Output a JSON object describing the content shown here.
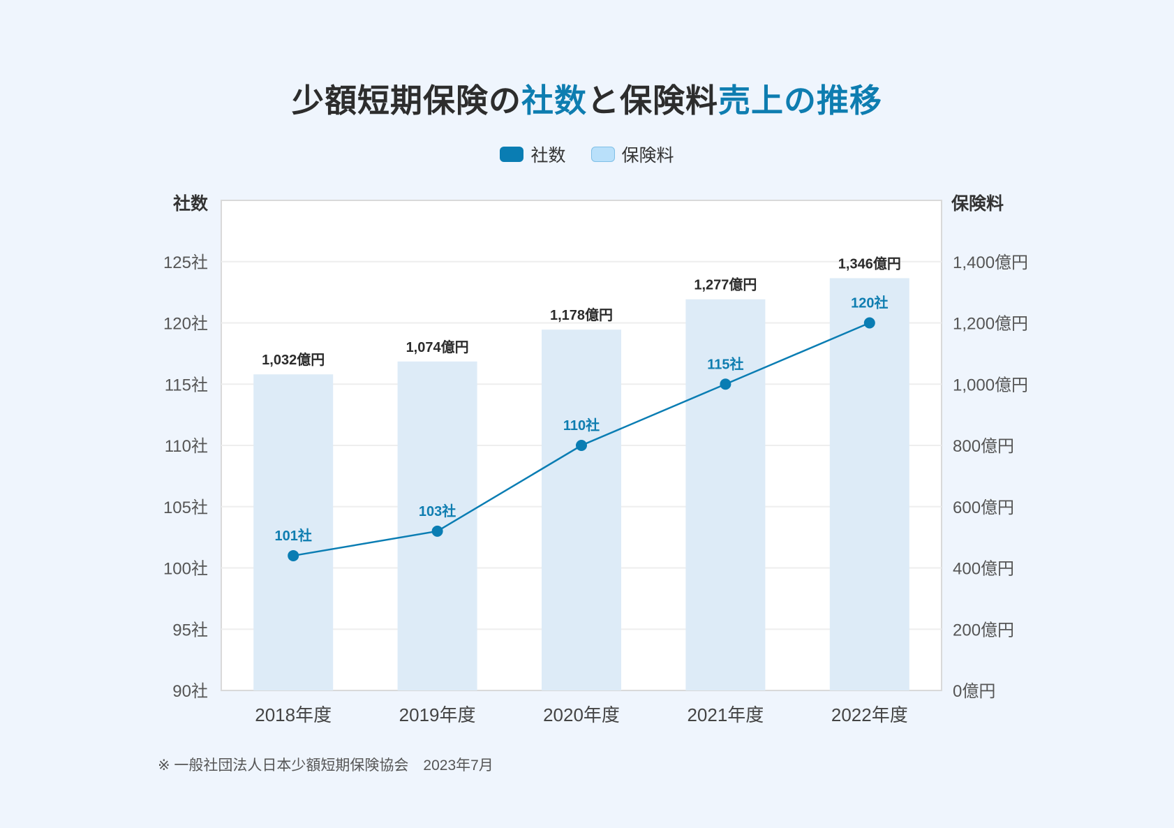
{
  "title": {
    "parts": [
      {
        "text": "少額短期保険の",
        "highlight": false
      },
      {
        "text": "社数",
        "highlight": true
      },
      {
        "text": "と保険料",
        "highlight": false
      },
      {
        "text": "売上の推移",
        "highlight": true
      }
    ]
  },
  "legend": {
    "count_label": "社数",
    "premium_label": "保険料"
  },
  "footnote": "※ 一般社団法人日本少額短期保険協会　2023年7月",
  "colors": {
    "accent": "#0e7db0",
    "line": "#0a7db3",
    "bar": "#ddebf7",
    "background": "#eff5fd",
    "plot_background": "#ffffff"
  },
  "chart_data": {
    "type": "bar",
    "categories": [
      "2018年度",
      "2019年度",
      "2020年度",
      "2021年度",
      "2022年度"
    ],
    "series": [
      {
        "name": "保険料",
        "type": "bar",
        "axis": "right",
        "values": [
          1032,
          1074,
          1178,
          1277,
          1346
        ],
        "labels": [
          "1,032億円",
          "1,074億円",
          "1,178億円",
          "1,277億円",
          "1,346億円"
        ]
      },
      {
        "name": "社数",
        "type": "line",
        "axis": "left",
        "values": [
          101,
          103,
          110,
          115,
          120
        ],
        "labels": [
          "101社",
          "103社",
          "110社",
          "115社",
          "120社"
        ]
      }
    ],
    "y_left": {
      "label": "社数",
      "range": [
        90,
        130
      ],
      "ticks": [
        90,
        95,
        100,
        105,
        110,
        115,
        120,
        125
      ],
      "tick_labels": [
        "90社",
        "95社",
        "100社",
        "105社",
        "110社",
        "115社",
        "120社",
        "125社"
      ]
    },
    "y_right": {
      "label": "保険料",
      "range": [
        0,
        1600
      ],
      "ticks": [
        0,
        200,
        400,
        600,
        800,
        1000,
        1200,
        1400
      ],
      "tick_labels": [
        "0億円",
        "200億円",
        "400億円",
        "600億円",
        "800億円",
        "1,000億円",
        "1,200億円",
        "1,400億円"
      ]
    },
    "grid": true,
    "legend_position": "top-center"
  }
}
